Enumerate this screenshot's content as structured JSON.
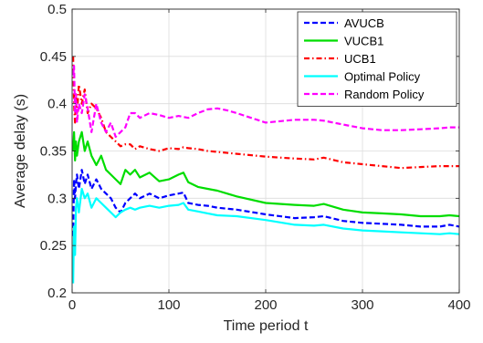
{
  "chart_data": {
    "type": "line",
    "xlabel": "Time period t",
    "ylabel": "Average delay (s)",
    "xlim": [
      0,
      400
    ],
    "ylim": [
      0.2,
      0.5
    ],
    "xticks": [
      0,
      100,
      200,
      300,
      400
    ],
    "yticks": [
      0.2,
      0.25,
      0.3,
      0.35,
      0.4,
      0.45,
      0.5
    ],
    "xtick_labels": [
      "0",
      "100",
      "200",
      "300",
      "400"
    ],
    "ytick_labels": [
      "0.2",
      "0.25",
      "0.3",
      "0.35",
      "0.4",
      "0.45",
      "0.5"
    ],
    "grid": true,
    "legend_position": "top-right",
    "series": [
      {
        "name": "AVUCB",
        "color": "#0000ff",
        "dash": "dashed",
        "x": [
          1,
          2,
          3,
          4,
          5,
          7,
          10,
          13,
          16,
          20,
          25,
          30,
          35,
          40,
          45,
          50,
          55,
          60,
          65,
          70,
          80,
          90,
          100,
          110,
          115,
          120,
          130,
          140,
          150,
          170,
          200,
          230,
          250,
          260,
          280,
          300,
          320,
          340,
          360,
          380,
          390,
          400
        ],
        "y": [
          0.26,
          0.32,
          0.3,
          0.315,
          0.325,
          0.31,
          0.33,
          0.315,
          0.325,
          0.31,
          0.32,
          0.31,
          0.305,
          0.3,
          0.29,
          0.285,
          0.295,
          0.3,
          0.305,
          0.3,
          0.305,
          0.3,
          0.303,
          0.305,
          0.306,
          0.295,
          0.293,
          0.292,
          0.29,
          0.288,
          0.283,
          0.279,
          0.28,
          0.281,
          0.276,
          0.274,
          0.273,
          0.272,
          0.27,
          0.27,
          0.272,
          0.27
        ]
      },
      {
        "name": "VUCB1",
        "color": "#00dd00",
        "dash": "solid",
        "x": [
          1,
          2,
          3,
          4,
          5,
          7,
          10,
          13,
          16,
          20,
          25,
          30,
          35,
          40,
          45,
          50,
          55,
          60,
          65,
          70,
          80,
          90,
          100,
          110,
          115,
          120,
          130,
          140,
          150,
          170,
          200,
          230,
          250,
          260,
          280,
          300,
          320,
          340,
          360,
          380,
          390,
          400
        ],
        "y": [
          0.35,
          0.37,
          0.34,
          0.36,
          0.345,
          0.36,
          0.37,
          0.35,
          0.36,
          0.345,
          0.335,
          0.345,
          0.33,
          0.325,
          0.32,
          0.315,
          0.33,
          0.325,
          0.33,
          0.322,
          0.327,
          0.318,
          0.32,
          0.325,
          0.327,
          0.317,
          0.312,
          0.31,
          0.308,
          0.302,
          0.295,
          0.293,
          0.292,
          0.294,
          0.288,
          0.285,
          0.284,
          0.283,
          0.281,
          0.281,
          0.282,
          0.281
        ]
      },
      {
        "name": "UCB1",
        "color": "#ff0000",
        "dash": "dashdot",
        "x": [
          1,
          2,
          3,
          4,
          5,
          7,
          10,
          13,
          16,
          20,
          25,
          30,
          35,
          40,
          45,
          50,
          55,
          60,
          65,
          70,
          80,
          90,
          100,
          110,
          115,
          120,
          130,
          140,
          150,
          170,
          200,
          230,
          250,
          260,
          280,
          300,
          320,
          340,
          360,
          380,
          390,
          400
        ],
        "y": [
          0.45,
          0.4,
          0.38,
          0.41,
          0.39,
          0.42,
          0.4,
          0.415,
          0.39,
          0.4,
          0.395,
          0.385,
          0.37,
          0.365,
          0.36,
          0.355,
          0.357,
          0.357,
          0.352,
          0.355,
          0.352,
          0.35,
          0.353,
          0.352,
          0.354,
          0.353,
          0.352,
          0.35,
          0.349,
          0.347,
          0.344,
          0.342,
          0.341,
          0.343,
          0.338,
          0.336,
          0.334,
          0.332,
          0.333,
          0.334,
          0.334,
          0.334
        ]
      },
      {
        "name": "Optimal Policy",
        "color": "#00ffff",
        "dash": "solid",
        "x": [
          1,
          2,
          3,
          4,
          5,
          7,
          10,
          13,
          16,
          20,
          25,
          30,
          35,
          40,
          45,
          50,
          55,
          60,
          65,
          70,
          80,
          90,
          100,
          110,
          115,
          120,
          130,
          140,
          150,
          170,
          200,
          230,
          250,
          260,
          280,
          300,
          320,
          340,
          360,
          380,
          390,
          400
        ],
        "y": [
          0.21,
          0.27,
          0.24,
          0.29,
          0.3,
          0.285,
          0.31,
          0.3,
          0.305,
          0.29,
          0.3,
          0.295,
          0.29,
          0.285,
          0.28,
          0.285,
          0.288,
          0.29,
          0.288,
          0.29,
          0.292,
          0.29,
          0.292,
          0.293,
          0.295,
          0.288,
          0.286,
          0.284,
          0.282,
          0.281,
          0.277,
          0.272,
          0.271,
          0.272,
          0.268,
          0.266,
          0.265,
          0.264,
          0.263,
          0.262,
          0.263,
          0.262
        ]
      },
      {
        "name": "Random Policy",
        "color": "#ff00ff",
        "dash": "dashed",
        "x": [
          1,
          2,
          3,
          4,
          5,
          7,
          10,
          13,
          16,
          20,
          25,
          30,
          35,
          40,
          45,
          50,
          55,
          60,
          65,
          70,
          80,
          90,
          100,
          110,
          115,
          120,
          130,
          140,
          150,
          160,
          170,
          200,
          230,
          250,
          260,
          280,
          300,
          320,
          340,
          360,
          380,
          390,
          400
        ],
        "y": [
          0.43,
          0.44,
          0.39,
          0.41,
          0.38,
          0.4,
          0.39,
          0.41,
          0.395,
          0.37,
          0.4,
          0.38,
          0.37,
          0.38,
          0.365,
          0.37,
          0.375,
          0.39,
          0.39,
          0.385,
          0.39,
          0.388,
          0.385,
          0.387,
          0.386,
          0.385,
          0.39,
          0.394,
          0.395,
          0.393,
          0.39,
          0.38,
          0.383,
          0.383,
          0.382,
          0.378,
          0.374,
          0.372,
          0.372,
          0.373,
          0.374,
          0.375,
          0.375
        ]
      }
    ]
  }
}
